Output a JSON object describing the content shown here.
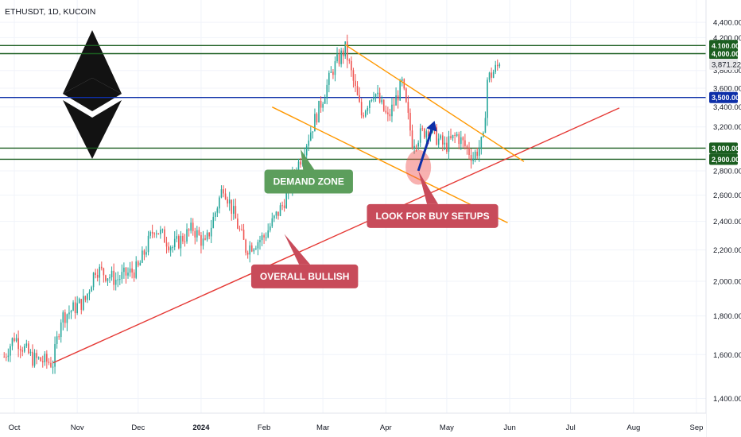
{
  "symbol_title": "ETHUSDT, 1D, KUCOIN",
  "chart_data": {
    "type": "candlestick",
    "symbol": "ETHUSDT",
    "interval": "1D",
    "exchange": "KUCOIN",
    "ylim": [
      1300,
      4450
    ],
    "y_scale": "log",
    "y_ticks": [
      {
        "value": 1400,
        "label": "1,400.00"
      },
      {
        "value": 1600,
        "label": "1,600.00"
      },
      {
        "value": 1800,
        "label": "1,800.00"
      },
      {
        "value": 2000,
        "label": "2,000.00"
      },
      {
        "value": 2200,
        "label": "2,200.00"
      },
      {
        "value": 2400,
        "label": "2,400.00"
      },
      {
        "value": 2600,
        "label": "2,600.00"
      },
      {
        "value": 2800,
        "label": "2,800.00"
      },
      {
        "value": 3200,
        "label": "3,200.00"
      },
      {
        "value": 3400,
        "label": "3,400.00"
      },
      {
        "value": 3600,
        "label": "3,600.00"
      },
      {
        "value": 3800,
        "label": "3,800.00"
      },
      {
        "value": 4200,
        "label": "4,200.00"
      },
      {
        "value": 4400,
        "label": "4,400.00"
      }
    ],
    "x_ticks": [
      {
        "label": "Oct",
        "date": "2023-10-01",
        "bold": false
      },
      {
        "label": "Nov",
        "date": "2023-11-01",
        "bold": false
      },
      {
        "label": "Dec",
        "date": "2023-12-01",
        "bold": false
      },
      {
        "label": "2024",
        "date": "2024-01-01",
        "bold": true
      },
      {
        "label": "Feb",
        "date": "2024-02-01",
        "bold": false
      },
      {
        "label": "Mar",
        "date": "2024-03-01",
        "bold": false
      },
      {
        "label": "Apr",
        "date": "2024-04-01",
        "bold": false
      },
      {
        "label": "May",
        "date": "2024-05-01",
        "bold": false
      },
      {
        "label": "Jun",
        "date": "2024-06-01",
        "bold": false
      },
      {
        "label": "Jul",
        "date": "2024-07-01",
        "bold": false
      },
      {
        "label": "Aug",
        "date": "2024-08-01",
        "bold": false
      },
      {
        "label": "Sep",
        "date": "2024-09-01",
        "bold": false
      }
    ],
    "price_anchors": [
      {
        "date": "2023-09-26",
        "price": 1590
      },
      {
        "date": "2023-10-01",
        "price": 1690
      },
      {
        "date": "2023-10-10",
        "price": 1580
      },
      {
        "date": "2023-10-20",
        "price": 1560
      },
      {
        "date": "2023-10-24",
        "price": 1790
      },
      {
        "date": "2023-11-05",
        "price": 1890
      },
      {
        "date": "2023-11-10",
        "price": 2080
      },
      {
        "date": "2023-11-20",
        "price": 2010
      },
      {
        "date": "2023-12-01",
        "price": 2080
      },
      {
        "date": "2023-12-09",
        "price": 2360
      },
      {
        "date": "2023-12-18",
        "price": 2220
      },
      {
        "date": "2023-12-28",
        "price": 2350
      },
      {
        "date": "2024-01-03",
        "price": 2230
      },
      {
        "date": "2024-01-12",
        "price": 2680
      },
      {
        "date": "2024-01-23",
        "price": 2210
      },
      {
        "date": "2024-02-01",
        "price": 2290
      },
      {
        "date": "2024-02-10",
        "price": 2520
      },
      {
        "date": "2024-02-20",
        "price": 2960
      },
      {
        "date": "2024-02-28",
        "price": 3380
      },
      {
        "date": "2024-03-06",
        "price": 3820
      },
      {
        "date": "2024-03-12",
        "price": 4060
      },
      {
        "date": "2024-03-20",
        "price": 3320
      },
      {
        "date": "2024-03-26",
        "price": 3580
      },
      {
        "date": "2024-04-02",
        "price": 3280
      },
      {
        "date": "2024-04-09",
        "price": 3650
      },
      {
        "date": "2024-04-14",
        "price": 3060
      },
      {
        "date": "2024-04-22",
        "price": 3190
      },
      {
        "date": "2024-04-30",
        "price": 3010
      },
      {
        "date": "2024-05-06",
        "price": 3120
      },
      {
        "date": "2024-05-14",
        "price": 2920
      },
      {
        "date": "2024-05-19",
        "price": 3070
      },
      {
        "date": "2024-05-21",
        "price": 3700
      },
      {
        "date": "2024-05-27",
        "price": 3871.22
      }
    ],
    "last_price": {
      "value": 3871.22,
      "label": "3,871.22"
    },
    "horizontal_levels": [
      {
        "value": 4100,
        "label": "4,100.00",
        "color": "#1b5e20"
      },
      {
        "value": 4000,
        "label": "4,000.00",
        "color": "#1b5e20"
      },
      {
        "value": 3500,
        "label": "3,500.00",
        "color": "#0d2fa8"
      },
      {
        "value": 3000,
        "label": "3,000.00",
        "color": "#1b5e20"
      },
      {
        "value": 2900,
        "label": "2,900.00",
        "color": "#1b5e20"
      }
    ],
    "trendlines": [
      {
        "name": "overall-bullish-trendline",
        "color": "#e53935",
        "from": {
          "date": "2023-10-20",
          "price": 1560
        },
        "to": {
          "date": "2024-07-25",
          "price": 3390
        }
      },
      {
        "name": "channel-upper-line",
        "color": "#ff9800",
        "from": {
          "date": "2024-03-12",
          "price": 4110
        },
        "to": {
          "date": "2024-06-08",
          "price": 2880
        }
      },
      {
        "name": "channel-lower-line",
        "color": "#ff9800",
        "from": {
          "date": "2024-02-05",
          "price": 3400
        },
        "to": {
          "date": "2024-05-31",
          "price": 2390
        }
      }
    ],
    "colors": {
      "up": "#26a69a",
      "down": "#ef5350",
      "arrow": "#0d2fa8",
      "demand": "#5c9e5c",
      "buy": "#c84b5a",
      "bullish": "#c84b5a"
    },
    "annotations": [
      {
        "text": "DEMAND ZONE",
        "style": "demand",
        "date": "2024-02-23",
        "price": 2710,
        "point_date": "2024-02-19",
        "point_price": 2990
      },
      {
        "text": "LOOK FOR BUY SETUPS",
        "style": "buy",
        "date": "2024-04-24",
        "price": 2440,
        "point_date": "2024-04-17",
        "point_price": 2800
      },
      {
        "text": "OVERALL BULLISH",
        "style": "bullish",
        "date": "2024-02-21",
        "price": 2030,
        "point_date": "2024-02-11",
        "point_price": 2310
      }
    ],
    "buy_arrow": {
      "from": {
        "date": "2024-04-17",
        "price": 2800
      },
      "to": {
        "date": "2024-04-25",
        "price": 3260
      }
    },
    "highlight_circle": {
      "date": "2024-04-17",
      "price": 2830
    }
  }
}
